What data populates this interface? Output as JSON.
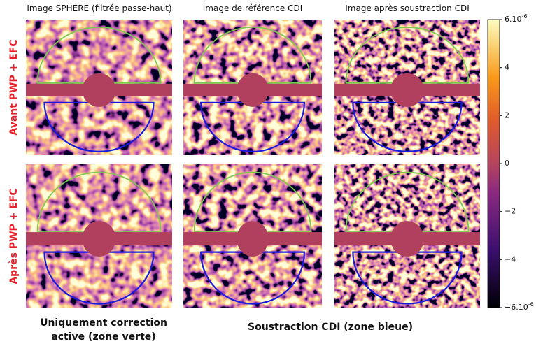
{
  "column_titles": [
    "Image SPHERE (filtrée passe-haut)",
    "Image de référence CDI",
    "Image après soustraction CDI"
  ],
  "row_labels": [
    "Avant PWP + EFC",
    "Après PWP + EFC"
  ],
  "colorbar": {
    "ticks": [
      {
        "label": "6.10",
        "sup": "-6"
      },
      "4",
      "2",
      "0",
      "−2",
      "−4",
      {
        "label": "−6.10",
        "sup": "-6"
      }
    ]
  },
  "captions": {
    "left": [
      "Uniquement correction",
      "active (zone verte)"
    ],
    "right": "Soustraction CDI (zone bleue)"
  }
}
